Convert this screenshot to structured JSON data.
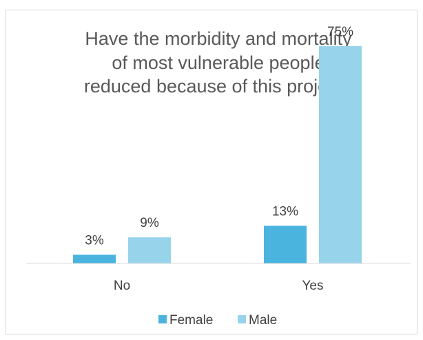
{
  "chart_data": {
    "type": "bar",
    "title_lines": [
      "Have the morbidity and mortality",
      "of most vulnerable people",
      "reduced because of this project?"
    ],
    "categories": [
      "No",
      "Yes"
    ],
    "series": [
      {
        "name": "Female",
        "color": "#4ab4de",
        "values": [
          3,
          13
        ],
        "labels": [
          "3%",
          "13%"
        ]
      },
      {
        "name": "Male",
        "color": "#97d4eb",
        "values": [
          9,
          75
        ],
        "labels": [
          "9%",
          "75%"
        ]
      }
    ],
    "ylim": [
      0,
      80
    ],
    "grid": false,
    "legend_position": "bottom",
    "axis_color": "#d9d9d9"
  }
}
